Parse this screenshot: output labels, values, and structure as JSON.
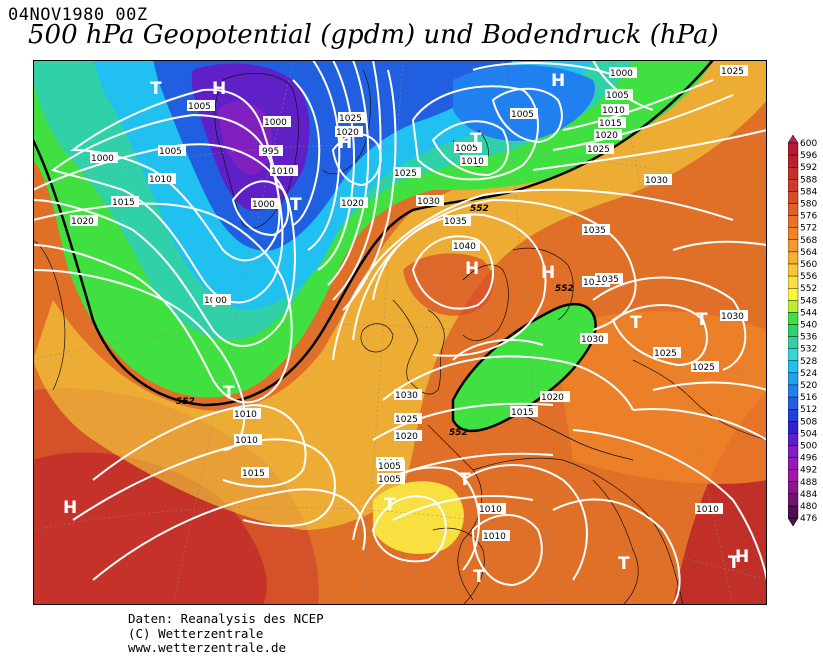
{
  "header": {
    "date": "04NOV1980 00Z",
    "title": "500 hPa Geopotential (gpdm) und Bodendruck (hPa)"
  },
  "footer": {
    "line1": "Daten: Reanalysis des NCEP",
    "line2": "(C) Wetterzentrale",
    "line3": "www.wetterzentrale.de"
  },
  "legend": {
    "levels": [
      "600",
      "596",
      "592",
      "588",
      "584",
      "580",
      "576",
      "572",
      "568",
      "564",
      "560",
      "556",
      "552",
      "548",
      "544",
      "540",
      "536",
      "532",
      "528",
      "524",
      "520",
      "516",
      "512",
      "508",
      "504",
      "500",
      "496",
      "492",
      "488",
      "484",
      "480",
      "476"
    ],
    "colors": [
      "#c41c5c",
      "#b81834",
      "#b8242c",
      "#c4302c",
      "#cc3c2c",
      "#d84c28",
      "#e06028",
      "#e87228",
      "#ee8428",
      "#f09a30",
      "#f5b030",
      "#f8c830",
      "#f8e040",
      "#f8f838",
      "#b8f030",
      "#40e040",
      "#30d070",
      "#30d0a8",
      "#30d8d8",
      "#20c0f0",
      "#20a0f0",
      "#2080f0",
      "#2060e0",
      "#2040d8",
      "#3020d0",
      "#6020c8",
      "#8020c0",
      "#9818b8",
      "#a018a8",
      "#881888",
      "#701470",
      "#501050"
    ]
  },
  "map": {
    "highs": [
      "H",
      "H",
      "H",
      "H",
      "H",
      "H",
      "H"
    ],
    "lows": [
      "T",
      "T",
      "T",
      "T",
      "T",
      "T",
      "T",
      "T",
      "T",
      "T",
      "T",
      "T"
    ],
    "isobar_labels": [
      "1000",
      "1005",
      "1010",
      "1015",
      "1020",
      "1005",
      "1000",
      "995",
      "1000",
      "1010",
      "1000",
      "1025",
      "1020",
      "1025",
      "1020",
      "1030",
      "1035",
      "1040",
      "1035",
      "1030",
      "1005",
      "1010",
      "1005",
      "1000",
      "1005",
      "1010",
      "1015",
      "1020",
      "1025",
      "1025",
      "1030",
      "1035",
      "1030",
      "1030",
      "1025",
      "1025",
      "1020",
      "1030",
      "1025",
      "1020",
      "1010",
      "1005",
      "1010",
      "1010",
      "1010",
      "1010",
      "1015",
      "1020",
      "1015",
      "1010",
      "1005"
    ],
    "geo_labels": [
      "552",
      "552",
      "552",
      "552"
    ]
  }
}
